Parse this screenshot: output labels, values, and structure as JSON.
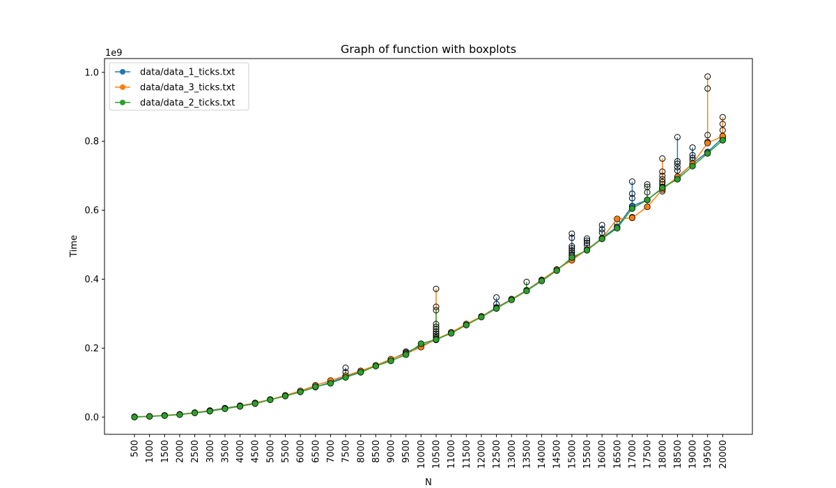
{
  "chart_data": {
    "type": "line",
    "title": "Graph of function with boxplots",
    "xlabel": "N",
    "ylabel": "Time",
    "y_scale_label": "1e9",
    "ylim": [
      -0.05,
      1.04
    ],
    "yticks": [
      0.0,
      0.2,
      0.4,
      0.6,
      0.8,
      1.0
    ],
    "ytick_labels": [
      "0.0",
      "0.2",
      "0.4",
      "0.6",
      "0.8",
      "1.0"
    ],
    "categories": [
      "500",
      "1000",
      "1500",
      "2000",
      "2500",
      "3000",
      "3500",
      "4000",
      "4500",
      "5000",
      "5500",
      "6000",
      "6500",
      "7000",
      "7500",
      "8000",
      "8500",
      "9000",
      "9500",
      "10000",
      "10500",
      "11000",
      "11500",
      "12000",
      "12500",
      "13000",
      "13500",
      "14000",
      "14500",
      "15000",
      "15500",
      "16000",
      "16500",
      "17000",
      "17500",
      "18000",
      "18500",
      "19000",
      "19500",
      "20000"
    ],
    "legend_position": "upper-left",
    "series": [
      {
        "name": "data/data_1_ticks.txt",
        "color": "#1f77b4",
        "values": [
          0.0,
          0.002,
          0.005,
          0.008,
          0.013,
          0.019,
          0.026,
          0.033,
          0.041,
          0.051,
          0.062,
          0.073,
          0.087,
          0.101,
          0.118,
          0.133,
          0.149,
          0.167,
          0.187,
          0.207,
          0.224,
          0.245,
          0.268,
          0.292,
          0.318,
          0.342,
          0.368,
          0.398,
          0.428,
          0.458,
          0.486,
          0.519,
          0.552,
          0.612,
          0.63,
          0.663,
          0.695,
          0.735,
          0.769,
          0.81
        ]
      },
      {
        "name": "data/data_3_ticks.txt",
        "color": "#ff7f0e",
        "values": [
          0.001,
          0.002,
          0.005,
          0.008,
          0.013,
          0.018,
          0.025,
          0.032,
          0.041,
          0.051,
          0.063,
          0.076,
          0.092,
          0.106,
          0.12,
          0.134,
          0.15,
          0.168,
          0.184,
          0.203,
          0.226,
          0.246,
          0.27,
          0.292,
          0.316,
          0.342,
          0.367,
          0.397,
          0.428,
          0.455,
          0.486,
          0.518,
          0.575,
          0.578,
          0.61,
          0.66,
          0.697,
          0.735,
          0.795,
          0.815
        ]
      },
      {
        "name": "data/data_2_ticks.txt",
        "color": "#2ca02c",
        "values": [
          0.0,
          0.002,
          0.004,
          0.007,
          0.012,
          0.017,
          0.024,
          0.031,
          0.039,
          0.05,
          0.061,
          0.073,
          0.088,
          0.098,
          0.115,
          0.13,
          0.148,
          0.163,
          0.181,
          0.213,
          0.225,
          0.243,
          0.267,
          0.29,
          0.315,
          0.34,
          0.366,
          0.395,
          0.425,
          0.463,
          0.484,
          0.517,
          0.548,
          0.605,
          0.63,
          0.665,
          0.69,
          0.728,
          0.765,
          0.803
        ]
      }
    ],
    "outliers": [
      {
        "x": "7500",
        "color": "#1f77b4",
        "values": [
          0.143,
          0.13
        ]
      },
      {
        "x": "9500",
        "color": "#1f77b4",
        "values": [
          0.19
        ]
      },
      {
        "x": "10500",
        "color": "#ff7f0e",
        "values": [
          0.372,
          0.32
        ]
      },
      {
        "x": "10500",
        "color": "#2ca02c",
        "values": [
          0.31,
          0.27,
          0.262,
          0.255,
          0.248,
          0.242,
          0.236,
          0.23
        ]
      },
      {
        "x": "12500",
        "color": "#1f77b4",
        "values": [
          0.347,
          0.328
        ]
      },
      {
        "x": "13500",
        "color": "#2ca02c",
        "values": [
          0.392
        ]
      },
      {
        "x": "15000",
        "color": "#1f77b4",
        "values": [
          0.532,
          0.52,
          0.496,
          0.49,
          0.484,
          0.478,
          0.472,
          0.468
        ]
      },
      {
        "x": "15500",
        "color": "#1f77b4",
        "values": [
          0.518,
          0.512,
          0.505,
          0.498
        ]
      },
      {
        "x": "16000",
        "color": "#1f77b4",
        "values": [
          0.557,
          0.545,
          0.535
        ]
      },
      {
        "x": "16500",
        "color": "#ff7f0e",
        "values": [
          0.562
        ]
      },
      {
        "x": "17000",
        "color": "#1f77b4",
        "values": [
          0.683,
          0.648,
          0.635,
          0.58
        ]
      },
      {
        "x": "17500",
        "color": "#2ca02c",
        "values": [
          0.675,
          0.668,
          0.652
        ]
      },
      {
        "x": "18000",
        "color": "#ff7f0e",
        "values": [
          0.75,
          0.712,
          0.7,
          0.69,
          0.682,
          0.675,
          0.668,
          0.66,
          0.655
        ]
      },
      {
        "x": "18500",
        "color": "#1f77b4",
        "values": [
          0.812,
          0.742,
          0.735,
          0.725,
          0.715
        ]
      },
      {
        "x": "19000",
        "color": "#1f77b4",
        "values": [
          0.782,
          0.76,
          0.752,
          0.745
        ]
      },
      {
        "x": "19500",
        "color": "#ff7f0e",
        "values": [
          0.988,
          0.953,
          0.818,
          0.798
        ]
      },
      {
        "x": "20000",
        "color": "#ff7f0e",
        "values": [
          0.87,
          0.85,
          0.832
        ]
      }
    ]
  }
}
